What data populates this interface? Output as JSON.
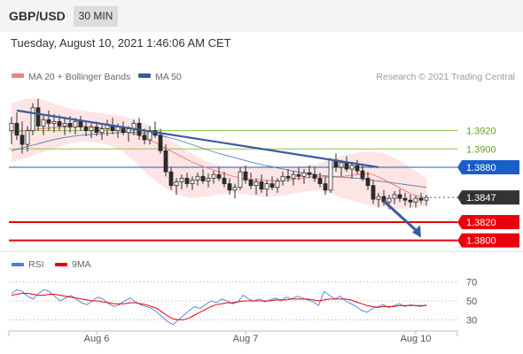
{
  "header": {
    "symbol": "GBP/USD",
    "timeframe": "30 MIN",
    "datetime": "Tuesday, August 10, 2021 1:46:06 AM CET"
  },
  "legend": {
    "bb_label": "MA 20 + Bollinger Bands",
    "ma50_label": "MA 50",
    "copyright": "Research © 2021 Trading Central",
    "rsi_label": "RSI",
    "rsi_ma_label": "9MA"
  },
  "colors": {
    "bb_color": "#f08080",
    "bb_fill": "#fde0e0",
    "ma50_color": "#3a5c9c",
    "candle": "#2b2b2b",
    "green_level": "#8dc63f",
    "blue_level": "#1a5fc8",
    "red_level": "#e8000b",
    "price_tag": "#333333",
    "rsi_color": "#4a7fd6",
    "rsi_ma_color": "#e8000b",
    "trendline": "#3a5c9c"
  },
  "chart_data": [
    {
      "type": "candlestick",
      "x_labels": [
        "Aug 6",
        "Aug 7",
        "Aug 10"
      ],
      "ylim": [
        1.379,
        1.3968
      ],
      "levels": [
        {
          "value": 1.392,
          "label": "1.3920",
          "style": "green-line"
        },
        {
          "value": 1.39,
          "label": "1.3900",
          "style": "green-line"
        },
        {
          "value": 1.388,
          "label": "1.3880",
          "style": "blue-line"
        },
        {
          "value": 1.3847,
          "label": "1.3847",
          "style": "current-price"
        },
        {
          "value": 1.382,
          "label": "1.3820",
          "style": "red-line"
        },
        {
          "value": 1.38,
          "label": "1.3800",
          "style": "red-line"
        }
      ],
      "candles": [
        [
          1.392,
          1.3935,
          1.3905,
          1.3928
        ],
        [
          1.3928,
          1.394,
          1.391,
          1.3915
        ],
        [
          1.3915,
          1.393,
          1.3895,
          1.3905
        ],
        [
          1.3905,
          1.3925,
          1.3897,
          1.392
        ],
        [
          1.392,
          1.395,
          1.3915,
          1.3945
        ],
        [
          1.3945,
          1.3955,
          1.392,
          1.3925
        ],
        [
          1.3925,
          1.3938,
          1.3915,
          1.3932
        ],
        [
          1.3932,
          1.3942,
          1.392,
          1.3928
        ],
        [
          1.3928,
          1.3938,
          1.3918,
          1.393
        ],
        [
          1.393,
          1.3937,
          1.392,
          1.3925
        ],
        [
          1.3925,
          1.3935,
          1.3915,
          1.3928
        ],
        [
          1.3928,
          1.3936,
          1.3918,
          1.3924
        ],
        [
          1.3924,
          1.3934,
          1.3916,
          1.393
        ],
        [
          1.393,
          1.3936,
          1.392,
          1.3924
        ],
        [
          1.3924,
          1.393,
          1.3914,
          1.392
        ],
        [
          1.392,
          1.3928,
          1.3912,
          1.3924
        ],
        [
          1.3924,
          1.393,
          1.3914,
          1.3918
        ],
        [
          1.3918,
          1.3926,
          1.391,
          1.3922
        ],
        [
          1.3922,
          1.3932,
          1.3914,
          1.3926
        ],
        [
          1.3926,
          1.3934,
          1.3916,
          1.392
        ],
        [
          1.392,
          1.3928,
          1.3912,
          1.3924
        ],
        [
          1.3924,
          1.393,
          1.3915,
          1.3918
        ],
        [
          1.3918,
          1.3925,
          1.3908,
          1.3922
        ],
        [
          1.3922,
          1.3932,
          1.3915,
          1.3928
        ],
        [
          1.3928,
          1.3934,
          1.391,
          1.3915
        ],
        [
          1.3915,
          1.3922,
          1.3905,
          1.391
        ],
        [
          1.391,
          1.3925,
          1.3905,
          1.392
        ],
        [
          1.392,
          1.393,
          1.3912,
          1.3915
        ],
        [
          1.3915,
          1.3922,
          1.3895,
          1.3898
        ],
        [
          1.3898,
          1.3905,
          1.387,
          1.3875
        ],
        [
          1.3875,
          1.388,
          1.3855,
          1.386
        ],
        [
          1.386,
          1.3868,
          1.385,
          1.3864
        ],
        [
          1.3864,
          1.3872,
          1.3856,
          1.3868
        ],
        [
          1.3868,
          1.3874,
          1.3858,
          1.3862
        ],
        [
          1.3862,
          1.387,
          1.3855,
          1.3866
        ],
        [
          1.3866,
          1.3874,
          1.386,
          1.387
        ],
        [
          1.387,
          1.3878,
          1.3862,
          1.3865
        ],
        [
          1.3865,
          1.3873,
          1.3858,
          1.3868
        ],
        [
          1.3868,
          1.3876,
          1.3862,
          1.3872
        ],
        [
          1.3872,
          1.388,
          1.3865,
          1.3868
        ],
        [
          1.3868,
          1.3875,
          1.3858,
          1.3862
        ],
        [
          1.3862,
          1.3868,
          1.385,
          1.3855
        ],
        [
          1.3855,
          1.3862,
          1.3846,
          1.3858
        ],
        [
          1.3858,
          1.388,
          1.3855,
          1.3875
        ],
        [
          1.3875,
          1.3882,
          1.3862,
          1.3866
        ],
        [
          1.3866,
          1.3874,
          1.3856,
          1.386
        ],
        [
          1.386,
          1.3868,
          1.385,
          1.3864
        ],
        [
          1.3864,
          1.3872,
          1.3852,
          1.3856
        ],
        [
          1.3856,
          1.3866,
          1.3848,
          1.3862
        ],
        [
          1.3862,
          1.387,
          1.3855,
          1.3858
        ],
        [
          1.3858,
          1.3868,
          1.3852,
          1.3865
        ],
        [
          1.3865,
          1.3875,
          1.386,
          1.387
        ],
        [
          1.387,
          1.3878,
          1.3864,
          1.3868
        ],
        [
          1.3868,
          1.3876,
          1.386,
          1.3872
        ],
        [
          1.3872,
          1.388,
          1.3866,
          1.387
        ],
        [
          1.387,
          1.3878,
          1.3862,
          1.3874
        ],
        [
          1.3874,
          1.3882,
          1.3868,
          1.3872
        ],
        [
          1.3872,
          1.388,
          1.3864,
          1.3868
        ],
        [
          1.3868,
          1.3874,
          1.3858,
          1.3862
        ],
        [
          1.3862,
          1.387,
          1.385,
          1.3855
        ],
        [
          1.3855,
          1.389,
          1.3852,
          1.3888
        ],
        [
          1.3888,
          1.3895,
          1.3875,
          1.388
        ],
        [
          1.388,
          1.3888,
          1.387,
          1.3885
        ],
        [
          1.3885,
          1.3892,
          1.3875,
          1.3878
        ],
        [
          1.3878,
          1.3886,
          1.3868,
          1.3882
        ],
        [
          1.3882,
          1.3888,
          1.3872,
          1.3876
        ],
        [
          1.3876,
          1.3884,
          1.3865,
          1.3868
        ],
        [
          1.3868,
          1.3875,
          1.3855,
          1.386
        ],
        [
          1.386,
          1.3866,
          1.384,
          1.3845
        ],
        [
          1.3845,
          1.3852,
          1.3836,
          1.3848
        ],
        [
          1.3848,
          1.3855,
          1.3838,
          1.3842
        ],
        [
          1.3842,
          1.385,
          1.3834,
          1.3846
        ],
        [
          1.3846,
          1.3854,
          1.384,
          1.385
        ],
        [
          1.385,
          1.3856,
          1.3842,
          1.3846
        ],
        [
          1.3846,
          1.3852,
          1.3838,
          1.3844
        ],
        [
          1.3844,
          1.385,
          1.3836,
          1.3842
        ],
        [
          1.3842,
          1.3849,
          1.3836,
          1.3846
        ],
        [
          1.3846,
          1.3852,
          1.384,
          1.3844
        ],
        [
          1.3844,
          1.385,
          1.3838,
          1.3847
        ]
      ],
      "ma20": [
        1.3918,
        1.392,
        1.3922,
        1.3923,
        1.3924,
        1.3925,
        1.3924,
        1.3922,
        1.392,
        1.3916,
        1.391,
        1.3902,
        1.3894,
        1.3886,
        1.388,
        1.3875,
        1.387,
        1.3867,
        1.3866,
        1.3865,
        1.3866,
        1.3868,
        1.387,
        1.3869,
        1.387,
        1.3872,
        1.3873,
        1.3866,
        1.3858,
        1.385,
        1.3846
      ],
      "bb_upper": [
        1.395,
        1.3955,
        1.3955,
        1.395,
        1.3945,
        1.3942,
        1.394,
        1.3938,
        1.3936,
        1.3932,
        1.3925,
        1.3915,
        1.3905,
        1.3895,
        1.3887,
        1.3882,
        1.388,
        1.388,
        1.3881,
        1.388,
        1.388,
        1.3881,
        1.3883,
        1.3888,
        1.3893,
        1.3896,
        1.3897,
        1.3895,
        1.3888,
        1.3878,
        1.3868
      ],
      "bb_lower": [
        1.3885,
        1.389,
        1.3895,
        1.39,
        1.3905,
        1.3908,
        1.3908,
        1.3904,
        1.3898,
        1.3885,
        1.387,
        1.3858,
        1.385,
        1.3846,
        1.3848,
        1.385,
        1.3852,
        1.385,
        1.3848,
        1.3848,
        1.385,
        1.3853,
        1.3855,
        1.3852,
        1.3846,
        1.3842,
        1.3838,
        1.3836,
        1.3834,
        1.3835,
        1.3838
      ],
      "ma50": [
        1.3898,
        1.3902,
        1.3906,
        1.391,
        1.3913,
        1.3915,
        1.3916,
        1.3917,
        1.3918,
        1.3918,
        1.3917,
        1.3914,
        1.391,
        1.3905,
        1.39,
        1.3895,
        1.3891,
        1.3887,
        1.3883,
        1.388,
        1.3877,
        1.3874,
        1.3872,
        1.387,
        1.3869,
        1.3868,
        1.3866,
        1.3864,
        1.3862,
        1.386,
        1.3858
      ],
      "trendline": [
        [
          1,
          1.3942
        ],
        [
          69,
          1.388
        ]
      ],
      "forecast_arrow": [
        [
          70,
          1.3843
        ],
        [
          77,
          1.3803
        ]
      ]
    },
    {
      "type": "line",
      "title": "RSI",
      "ylim": [
        20,
        80
      ],
      "ticks": [
        70,
        50,
        30
      ],
      "rsi": [
        58,
        62,
        60,
        55,
        52,
        58,
        62,
        60,
        55,
        50,
        53,
        56,
        52,
        48,
        46,
        50,
        54,
        52,
        47,
        44,
        46,
        50,
        53,
        49,
        46,
        44,
        42,
        38,
        33,
        28,
        25,
        30,
        35,
        40,
        44,
        42,
        46,
        50,
        48,
        52,
        50,
        47,
        49,
        56,
        52,
        50,
        52,
        49,
        51,
        53,
        50,
        54,
        52,
        55,
        53,
        51,
        49,
        45,
        60,
        56,
        52,
        55,
        50,
        47,
        44,
        40,
        38,
        42,
        44,
        46,
        43,
        45,
        47,
        44,
        46,
        45,
        44,
        46
      ],
      "rsi_ma": [
        56,
        57,
        58,
        58,
        57,
        56,
        56,
        57,
        57,
        56,
        55,
        54,
        53,
        52,
        51,
        50,
        50,
        49,
        48,
        47,
        47,
        47,
        48,
        48,
        47,
        46,
        44,
        42,
        38,
        34,
        31,
        30,
        30,
        32,
        35,
        38,
        41,
        44,
        46,
        47,
        48,
        48,
        49,
        50,
        50,
        50,
        50,
        50,
        50,
        51,
        51,
        51,
        52,
        52,
        52,
        52,
        51,
        50,
        51,
        52,
        52,
        52,
        52,
        51,
        49,
        47,
        45,
        44,
        43,
        44,
        44,
        44,
        45,
        45,
        45,
        45,
        45,
        45
      ]
    }
  ]
}
